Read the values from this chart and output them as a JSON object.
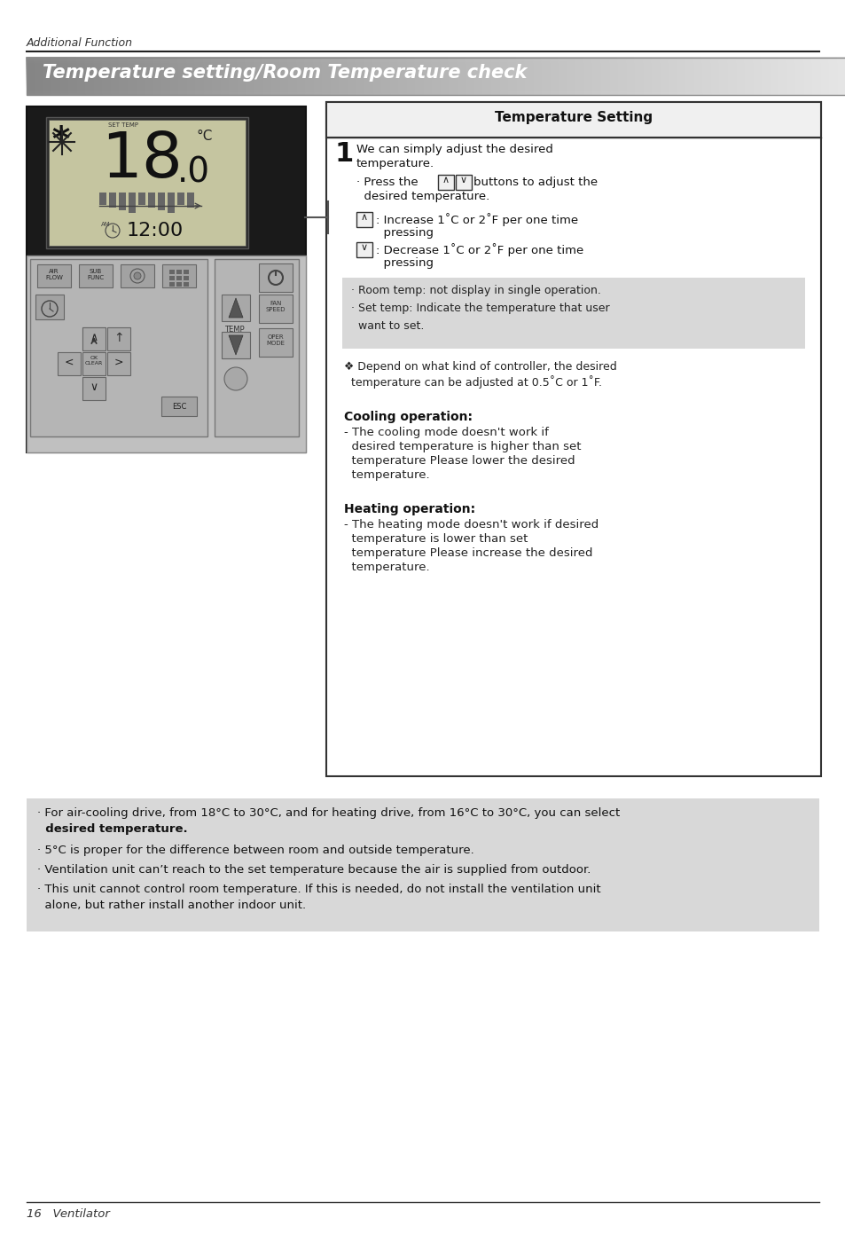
{
  "page_title": "Additional Function",
  "section_title": "Temperature setting/Room Temperature check",
  "box_title": "Temperature Setting",
  "gray_box_line1": "· Room temp: not display in single operation.",
  "gray_box_line2": "· Set temp: Indicate the temperature that user",
  "gray_box_line3": "  want to set.",
  "cooling_title": "Cooling operation:",
  "heating_title": "Heating operation:",
  "bottom_note1": "· For air-cooling drive, from 18°C to 30°C, and for heating drive, from 16°C to 30°C, you can select",
  "bottom_note1b": "  desired temperature.",
  "bottom_note2": "· 5°C is proper for the difference between room and outside temperature.",
  "bottom_note3": "· Ventilation unit can’t reach to the set temperature because the air is supplied from outdoor.",
  "bottom_note4": "· This unit cannot control room temperature. If this is needed, do not install the ventilation unit",
  "bottom_note4b": "  alone, but rather install another indoor unit.",
  "footer_text": "16   Ventilator",
  "bg_color": "#ffffff",
  "gray_note_bg": "#d8d8d8",
  "bottom_note_bg": "#d8d8d8",
  "box_border": "#333333"
}
